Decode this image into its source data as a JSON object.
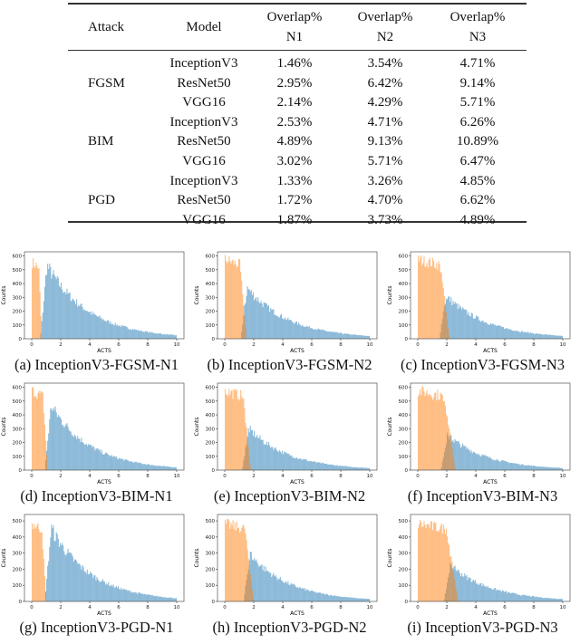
{
  "table": {
    "headers": [
      {
        "line1": "Attack",
        "line2": ""
      },
      {
        "line1": "Model",
        "line2": ""
      },
      {
        "line1": "Overlap%",
        "line2": "N1"
      },
      {
        "line1": "Overlap%",
        "line2": "N2"
      },
      {
        "line1": "Overlap%",
        "line2": "N3"
      }
    ],
    "groups": [
      {
        "attack": "FGSM",
        "rows": [
          {
            "model": "InceptionV3",
            "n1": "1.46%",
            "n2": "3.54%",
            "n3": "4.71%"
          },
          {
            "model": "ResNet50",
            "n1": "2.95%",
            "n2": "6.42%",
            "n3": "9.14%"
          },
          {
            "model": "VGG16",
            "n1": "2.14%",
            "n2": "4.29%",
            "n3": "5.71%"
          }
        ]
      },
      {
        "attack": "BIM",
        "rows": [
          {
            "model": "InceptionV3",
            "n1": "2.53%",
            "n2": "4.71%",
            "n3": "6.26%"
          },
          {
            "model": "ResNet50",
            "n1": "4.89%",
            "n2": "9.13%",
            "n3": "10.89%"
          },
          {
            "model": "VGG16",
            "n1": "3.02%",
            "n2": "5.71%",
            "n3": "6.47%"
          }
        ]
      },
      {
        "attack": "PGD",
        "rows": [
          {
            "model": "InceptionV3",
            "n1": "1.33%",
            "n2": "3.26%",
            "n3": "4.85%"
          },
          {
            "model": "ResNet50",
            "n1": "1.72%",
            "n2": "4.70%",
            "n3": "6.62%"
          },
          {
            "model": "VGG16",
            "n1": "1.87%",
            "n2": "3.73%",
            "n3": "4.89%"
          }
        ]
      }
    ]
  },
  "colors": {
    "benign": "#ff7f0e",
    "adversarial": "#1f77b4"
  },
  "chart_data": [
    {
      "type": "bar",
      "caption": "(a) InceptionV3-FGSM-N1",
      "xlabel": "ACTS",
      "ylabel": "Counts",
      "xlim": [
        0,
        10
      ],
      "xticks": [
        "0",
        "2",
        "4",
        "6",
        "8",
        "10"
      ],
      "yticks": [
        "0",
        "100",
        "200",
        "300",
        "400",
        "500",
        "600"
      ],
      "ymax": 630,
      "orange": {
        "range": [
          0,
          0.7
        ],
        "peak": 570
      },
      "blue": {
        "range": [
          0.6,
          10
        ],
        "peak": 545,
        "end": 25
      }
    },
    {
      "type": "bar",
      "caption": "(b) InceptionV3-FGSM-N2",
      "xlabel": "ACTS",
      "ylabel": "Counts",
      "xlim": [
        0,
        10
      ],
      "xticks": [
        "0",
        "2",
        "4",
        "6",
        "8",
        "10"
      ],
      "yticks": [
        "0",
        "100",
        "200",
        "300",
        "400",
        "500",
        "600"
      ],
      "ymax": 630,
      "orange": {
        "range": [
          0,
          1.5
        ],
        "peak": 590
      },
      "blue": {
        "range": [
          1.1,
          10
        ],
        "peak": 380,
        "end": 20
      }
    },
    {
      "type": "bar",
      "caption": "(c) InceptionV3-FGSM-N3",
      "xlabel": "ACTS",
      "ylabel": "Counts",
      "xlim": [
        0,
        10
      ],
      "xticks": [
        "0",
        "2",
        "4",
        "6",
        "8",
        "10"
      ],
      "yticks": [
        "0",
        "100",
        "200",
        "300",
        "400",
        "500",
        "600"
      ],
      "ymax": 630,
      "orange": {
        "range": [
          0,
          2.2
        ],
        "peak": 590
      },
      "blue": {
        "range": [
          1.5,
          10
        ],
        "peak": 320,
        "end": 20
      }
    },
    {
      "type": "bar",
      "caption": "(d) InceptionV3-BIM-N1",
      "xlabel": "ACTS",
      "ylabel": "Counts",
      "xlim": [
        0,
        10
      ],
      "xticks": [
        "0",
        "2",
        "4",
        "6",
        "8",
        "10"
      ],
      "yticks": [
        "0",
        "100",
        "200",
        "300",
        "400",
        "500",
        "600"
      ],
      "ymax": 630,
      "orange": {
        "range": [
          0,
          1.1
        ],
        "peak": 590
      },
      "blue": {
        "range": [
          0.9,
          10
        ],
        "peak": 480,
        "end": 20
      }
    },
    {
      "type": "bar",
      "caption": "(e) InceptionV3-BIM-N2",
      "xlabel": "ACTS",
      "ylabel": "Counts",
      "xlim": [
        0,
        10
      ],
      "xticks": [
        "0",
        "2",
        "4",
        "6",
        "8",
        "10"
      ],
      "yticks": [
        "0",
        "100",
        "200",
        "300",
        "400",
        "500",
        "600"
      ],
      "ymax": 630,
      "orange": {
        "range": [
          0,
          1.8
        ],
        "peak": 590
      },
      "blue": {
        "range": [
          1.2,
          10
        ],
        "peak": 310,
        "end": 15
      }
    },
    {
      "type": "bar",
      "caption": "(f) InceptionV3-BIM-N3",
      "xlabel": "ACTS",
      "ylabel": "Counts",
      "xlim": [
        0,
        10
      ],
      "xticks": [
        "0",
        "2",
        "4",
        "6",
        "8",
        "10"
      ],
      "yticks": [
        "0",
        "100",
        "200",
        "300",
        "400",
        "500",
        "600"
      ],
      "ymax": 630,
      "orange": {
        "range": [
          0,
          2.6
        ],
        "peak": 590
      },
      "blue": {
        "range": [
          1.6,
          10
        ],
        "peak": 260,
        "end": 15
      }
    },
    {
      "type": "bar",
      "caption": "(g) InceptionV3-PGD-N1",
      "xlabel": "ACTS",
      "ylabel": "Counts",
      "xlim": [
        0,
        10
      ],
      "xticks": [
        "0",
        "2",
        "4",
        "6",
        "8",
        "10"
      ],
      "yticks": [
        "0",
        "100",
        "200",
        "300",
        "400",
        "500"
      ],
      "ymax": 540,
      "orange": {
        "range": [
          0,
          1.0
        ],
        "peak": 495
      },
      "blue": {
        "range": [
          0.9,
          10
        ],
        "peak": 465,
        "end": 20
      }
    },
    {
      "type": "bar",
      "caption": "(h) InceptionV3-PGD-N2",
      "xlabel": "ACTS",
      "ylabel": "Counts",
      "xlim": [
        0,
        10
      ],
      "xticks": [
        "0",
        "2",
        "4",
        "6",
        "8",
        "10"
      ],
      "yticks": [
        "0",
        "100",
        "200",
        "300",
        "400",
        "500"
      ],
      "ymax": 540,
      "orange": {
        "range": [
          0,
          2.0
        ],
        "peak": 495
      },
      "blue": {
        "range": [
          1.3,
          10
        ],
        "peak": 300,
        "end": 15
      }
    },
    {
      "type": "bar",
      "caption": "(i) InceptionV3-PGD-N3",
      "xlabel": "ACTS",
      "ylabel": "Counts",
      "xlim": [
        0,
        10
      ],
      "xticks": [
        "0",
        "2",
        "4",
        "6",
        "8",
        "10"
      ],
      "yticks": [
        "0",
        "100",
        "200",
        "300",
        "400",
        "500"
      ],
      "ymax": 540,
      "orange": {
        "range": [
          0,
          2.8
        ],
        "peak": 495
      },
      "blue": {
        "range": [
          1.8,
          10
        ],
        "peak": 230,
        "end": 15
      }
    }
  ]
}
